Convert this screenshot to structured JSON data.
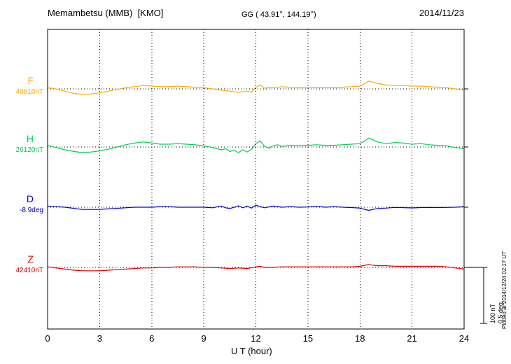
{
  "header": {
    "station": "Memambetsu (MMB)  [KMO]",
    "coords": "GG ( 43.91°, 144.19°)",
    "date": "2014/11/23"
  },
  "axis": {
    "x_label": "U T (hour)",
    "x_ticks": [
      0,
      3,
      6,
      9,
      12,
      15,
      18,
      21,
      24
    ]
  },
  "scale_bar": {
    "nt_label": "100 nT",
    "deg_label": "0.5 deg"
  },
  "footer_note": "Plotted at 2014/12/24 02:17 UT",
  "chart_data": {
    "type": "line",
    "title": "Memambetsu (MMB) [KMO] magnetogram 2014/11/23",
    "xlabel": "U T (hour)",
    "x_range": [
      0,
      24
    ],
    "x_ticks": [
      0,
      3,
      6,
      9,
      12,
      15,
      18,
      21,
      24
    ],
    "grid": "vertical dotted lines every 3 hours; dotted horizontal baseline per component",
    "legend_position": "left of each trace",
    "scale_reference": {
      "nT": 100,
      "deg": 0.5
    },
    "series": [
      {
        "name": "F",
        "baseline_label": "49810nT",
        "baseline_value": 49810,
        "unit": "nT",
        "color": "#FFAA00",
        "points": [
          [
            0,
            2
          ],
          [
            0.5,
            0
          ],
          [
            1,
            -4
          ],
          [
            1.5,
            -8
          ],
          [
            2,
            -10
          ],
          [
            2.5,
            -9
          ],
          [
            3,
            -7
          ],
          [
            3.5,
            -4
          ],
          [
            4,
            -1
          ],
          [
            4.5,
            2
          ],
          [
            5,
            4
          ],
          [
            5.5,
            6
          ],
          [
            6,
            5
          ],
          [
            6.5,
            4
          ],
          [
            7,
            4
          ],
          [
            7.5,
            5
          ],
          [
            8,
            4
          ],
          [
            8.5,
            3
          ],
          [
            9,
            2
          ],
          [
            9.5,
            0
          ],
          [
            10,
            -2
          ],
          [
            10.5,
            -4
          ],
          [
            11,
            -6
          ],
          [
            11.5,
            -4
          ],
          [
            11.75,
            -6
          ],
          [
            12,
            3
          ],
          [
            12.25,
            7
          ],
          [
            12.5,
            1
          ],
          [
            12.75,
            3
          ],
          [
            13,
            2
          ],
          [
            13.5,
            4
          ],
          [
            14,
            3
          ],
          [
            14.5,
            2
          ],
          [
            15,
            2
          ],
          [
            15.5,
            3
          ],
          [
            16,
            2
          ],
          [
            16.5,
            3
          ],
          [
            17,
            3
          ],
          [
            17.5,
            4
          ],
          [
            18,
            5
          ],
          [
            18.25,
            9
          ],
          [
            18.5,
            14
          ],
          [
            18.75,
            12
          ],
          [
            19,
            10
          ],
          [
            19.5,
            7
          ],
          [
            20,
            6
          ],
          [
            20.5,
            6
          ],
          [
            21,
            5
          ],
          [
            21.5,
            5
          ],
          [
            22,
            4
          ],
          [
            22.5,
            3
          ],
          [
            23,
            2
          ],
          [
            23.5,
            0
          ],
          [
            24,
            -2
          ]
        ]
      },
      {
        "name": "H",
        "baseline_label": "26120nT",
        "baseline_value": 26120,
        "unit": "nT",
        "color": "#00CC55",
        "points": [
          [
            0,
            3
          ],
          [
            0.5,
            -1
          ],
          [
            1,
            -5
          ],
          [
            1.5,
            -8
          ],
          [
            2,
            -10
          ],
          [
            2.5,
            -9
          ],
          [
            3,
            -7
          ],
          [
            3.5,
            -4
          ],
          [
            4,
            0
          ],
          [
            4.5,
            4
          ],
          [
            5,
            7
          ],
          [
            5.5,
            9
          ],
          [
            6,
            7
          ],
          [
            6.5,
            5
          ],
          [
            7,
            5
          ],
          [
            7.5,
            6
          ],
          [
            8,
            5
          ],
          [
            8.5,
            4
          ],
          [
            9,
            2
          ],
          [
            9.5,
            -1
          ],
          [
            10,
            -5
          ],
          [
            10.25,
            -3
          ],
          [
            10.5,
            -8
          ],
          [
            10.75,
            -6
          ],
          [
            11,
            -10
          ],
          [
            11.25,
            -5
          ],
          [
            11.5,
            -9
          ],
          [
            11.75,
            -4
          ],
          [
            12,
            6
          ],
          [
            12.25,
            11
          ],
          [
            12.5,
            1
          ],
          [
            12.75,
            -2
          ],
          [
            13,
            2
          ],
          [
            13.25,
            4
          ],
          [
            13.5,
            1
          ],
          [
            14,
            3
          ],
          [
            14.5,
            2
          ],
          [
            15,
            3
          ],
          [
            15.5,
            4
          ],
          [
            16,
            3
          ],
          [
            16.5,
            3
          ],
          [
            17,
            4
          ],
          [
            17.5,
            5
          ],
          [
            18,
            6
          ],
          [
            18.25,
            10
          ],
          [
            18.5,
            16
          ],
          [
            18.75,
            13
          ],
          [
            19,
            9
          ],
          [
            19.5,
            6
          ],
          [
            20,
            8
          ],
          [
            20.5,
            7
          ],
          [
            21,
            5
          ],
          [
            21.5,
            6
          ],
          [
            22,
            4
          ],
          [
            22.5,
            3
          ],
          [
            23,
            2
          ],
          [
            23.5,
            -1
          ],
          [
            24,
            -3
          ]
        ]
      },
      {
        "name": "D",
        "baseline_label": "-8.9deg",
        "baseline_value": -8.9,
        "unit": "deg",
        "color": "#0000CC",
        "points": [
          [
            0,
            0.01
          ],
          [
            0.5,
            0.005
          ],
          [
            1,
            0
          ],
          [
            1.5,
            -0.01
          ],
          [
            2,
            -0.02
          ],
          [
            2.5,
            -0.02
          ],
          [
            3,
            -0.02
          ],
          [
            3.5,
            -0.015
          ],
          [
            4,
            -0.01
          ],
          [
            4.5,
            -0.005
          ],
          [
            5,
            0
          ],
          [
            5.5,
            0
          ],
          [
            6,
            0
          ],
          [
            6.5,
            0.005
          ],
          [
            7,
            0.005
          ],
          [
            7.5,
            0
          ],
          [
            8,
            0
          ],
          [
            8.5,
            0
          ],
          [
            9,
            0
          ],
          [
            9.5,
            -0.005
          ],
          [
            10,
            0.01
          ],
          [
            10.25,
            -0.005
          ],
          [
            10.5,
            -0.012
          ],
          [
            11,
            0.012
          ],
          [
            11.25,
            -0.005
          ],
          [
            11.5,
            0.01
          ],
          [
            11.75,
            -0.008
          ],
          [
            12,
            0.018
          ],
          [
            12.25,
            0.005
          ],
          [
            12.5,
            -0.005
          ],
          [
            13,
            0.01
          ],
          [
            13.5,
            0
          ],
          [
            14,
            0.005
          ],
          [
            14.5,
            0
          ],
          [
            15,
            0.002
          ],
          [
            15.5,
            0.008
          ],
          [
            16,
            0
          ],
          [
            16.5,
            0.005
          ],
          [
            17,
            0
          ],
          [
            17.5,
            -0.003
          ],
          [
            18,
            -0.008
          ],
          [
            18.5,
            -0.028
          ],
          [
            18.75,
            -0.02
          ],
          [
            19,
            -0.012
          ],
          [
            19.5,
            -0.008
          ],
          [
            20,
            -0.002
          ],
          [
            20.5,
            -0.004
          ],
          [
            21,
            -0.006
          ],
          [
            21.5,
            -0.003
          ],
          [
            22,
            -0.002
          ],
          [
            22.5,
            -0.003
          ],
          [
            23,
            -0.002
          ],
          [
            23.5,
            0
          ],
          [
            24,
            0.004
          ]
        ]
      },
      {
        "name": "Z",
        "baseline_label": "42410nT",
        "baseline_value": 42410,
        "unit": "nT",
        "color": "#E00000",
        "points": [
          [
            0,
            1
          ],
          [
            0.5,
            -1
          ],
          [
            1,
            -3
          ],
          [
            1.5,
            -5
          ],
          [
            2,
            -6
          ],
          [
            2.5,
            -6
          ],
          [
            3,
            -6
          ],
          [
            3.5,
            -5
          ],
          [
            4,
            -4
          ],
          [
            4.5,
            -3
          ],
          [
            5,
            -2
          ],
          [
            5.5,
            -1
          ],
          [
            6,
            -1
          ],
          [
            6.5,
            0
          ],
          [
            7,
            0
          ],
          [
            7.5,
            1
          ],
          [
            8,
            1
          ],
          [
            8.5,
            1
          ],
          [
            9,
            0
          ],
          [
            9.5,
            0
          ],
          [
            10,
            -1
          ],
          [
            10.5,
            -2
          ],
          [
            11,
            -1
          ],
          [
            11.5,
            -2
          ],
          [
            12,
            1
          ],
          [
            12.25,
            2
          ],
          [
            12.5,
            0
          ],
          [
            13,
            0
          ],
          [
            13.5,
            1
          ],
          [
            14,
            1
          ],
          [
            14.5,
            1
          ],
          [
            15,
            1
          ],
          [
            15.5,
            1
          ],
          [
            16,
            1
          ],
          [
            16.5,
            1
          ],
          [
            17,
            1
          ],
          [
            17.5,
            1
          ],
          [
            18,
            2
          ],
          [
            18.5,
            5
          ],
          [
            18.75,
            4
          ],
          [
            19,
            3
          ],
          [
            19.5,
            3
          ],
          [
            20,
            2
          ],
          [
            20.5,
            2
          ],
          [
            21,
            2
          ],
          [
            21.5,
            2
          ],
          [
            22,
            2
          ],
          [
            22.5,
            2
          ],
          [
            23,
            1
          ],
          [
            23.5,
            -1
          ],
          [
            24,
            -3
          ]
        ]
      }
    ]
  }
}
